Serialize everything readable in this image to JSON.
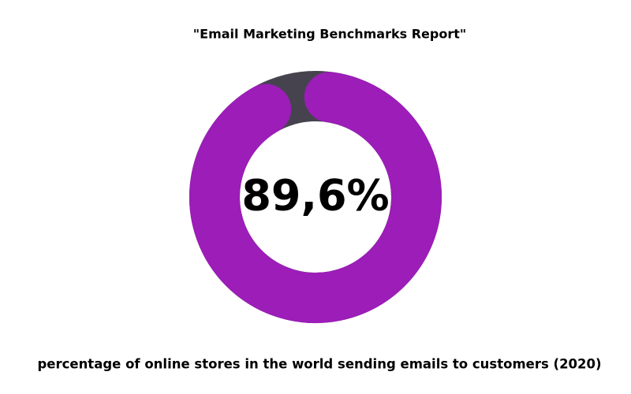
{
  "chart_data": {
    "type": "donut",
    "title": "\"Email Marketing Benchmarks Report\"",
    "caption": "percentage of online stores in the world sending emails to customers (2020)",
    "values": [
      89.6
    ],
    "value_labels": [
      "89,6%"
    ],
    "ylim": [
      0,
      100
    ],
    "color": "#9c1db8",
    "track_color": "#46434f"
  }
}
